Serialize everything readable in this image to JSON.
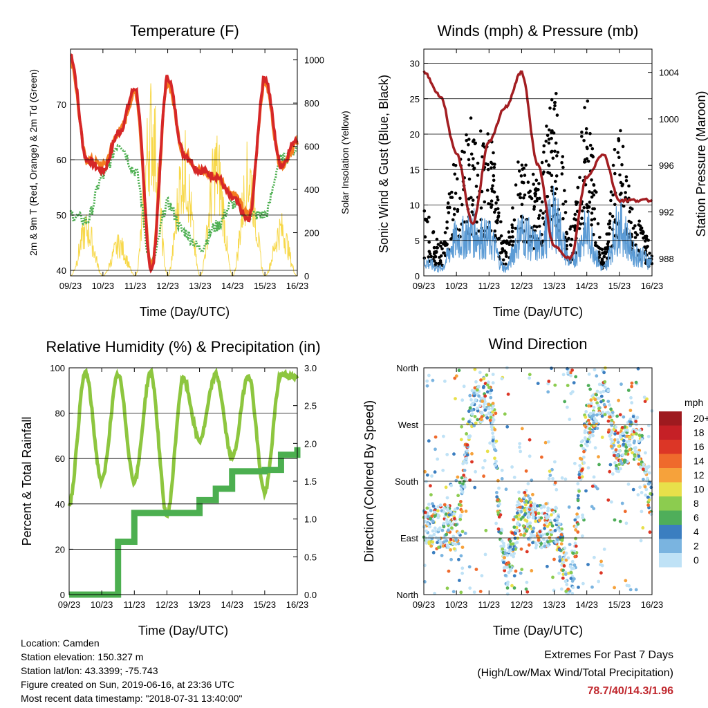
{
  "x_ticks": [
    "09/23",
    "10/23",
    "11/23",
    "12/23",
    "13/23",
    "14/23",
    "15/23",
    "16/23"
  ],
  "x_label": "Time (Day/UTC)",
  "charts": [
    {
      "id": "temperature",
      "title": "Temperature (F)",
      "ylabel_left": "2m & 9m T (Red, Orange) & 2m Td (Green)",
      "ylabel_right": "Solar Insolation (Yellow)",
      "left_ticks": [
        "40",
        "50",
        "60",
        "70"
      ],
      "right_ticks": [
        "0",
        "200",
        "400",
        "600",
        "800",
        "1000"
      ]
    },
    {
      "id": "winds",
      "title": "Winds (mph) & Pressure (mb)",
      "ylabel_left": "Sonic Wind & Gust (Blue, Black)",
      "ylabel_right": "Station Pressure (Maroon)",
      "left_ticks": [
        "0",
        "5",
        "10",
        "15",
        "20",
        "25",
        "30"
      ],
      "right_ticks": [
        "988",
        "992",
        "996",
        "1000",
        "1004"
      ]
    },
    {
      "id": "humidity",
      "title": "Relative Humidity (%) & Precipitation (in)",
      "ylabel_left": "Percent & Total Rainfall",
      "left_ticks": [
        "0",
        "20",
        "40",
        "60",
        "80",
        "100"
      ],
      "right_ticks": [
        "0.0",
        "0.5",
        "1.0",
        "1.5",
        "2.0",
        "2.5",
        "3.0"
      ]
    },
    {
      "id": "direction",
      "title": "Wind Direction",
      "ylabel_left": "Direction (Colored By Speed)",
      "left_ticks": [
        "North",
        "East",
        "South",
        "West",
        "North"
      ],
      "legend_title": "mph",
      "legend_labels": [
        "20+",
        "18",
        "16",
        "14",
        "12",
        "10",
        "8",
        "6",
        "4",
        "2",
        "0"
      ],
      "legend_colors": [
        "#9e1a1f",
        "#c52026",
        "#dc3626",
        "#ef6a2c",
        "#f6a23b",
        "#e8e04a",
        "#8ccc4f",
        "#4fae5a",
        "#3b7ec0",
        "#7ab4e0",
        "#bfe2f6"
      ]
    }
  ],
  "chart_data": [
    {
      "type": "line",
      "title": "Temperature (F)",
      "x": [
        "09/23 00",
        "09/23 12",
        "10/23 00",
        "10/23 12",
        "11/23 00",
        "11/23 12",
        "12/23 00",
        "12/23 12",
        "13/23 00",
        "13/23 12",
        "14/23 00",
        "14/23 12",
        "15/23 00",
        "15/23 12",
        "16/23 00"
      ],
      "ylim": [
        39,
        80
      ],
      "series": [
        {
          "name": "2m T",
          "color": "#d62728",
          "values": [
            79,
            60,
            58,
            65,
            73,
            40,
            75,
            61,
            58,
            57,
            53,
            49,
            75,
            59,
            64
          ]
        },
        {
          "name": "9m T",
          "color": "#f47c20",
          "values": [
            78,
            60,
            59,
            65,
            72,
            41,
            74,
            61,
            58,
            57,
            54,
            50,
            74,
            59,
            63
          ]
        },
        {
          "name": "2m Td",
          "color": "#4caf50",
          "values": [
            50,
            49,
            57,
            63,
            58,
            41,
            52,
            47,
            44,
            48,
            52,
            50,
            50,
            60,
            62
          ]
        }
      ],
      "y2lim": [
        0,
        1050
      ],
      "secondary_series": [
        {
          "name": "Solar Insolation",
          "color": "#f7d84a",
          "values": [
            0,
            300,
            0,
            200,
            0,
            950,
            0,
            700,
            0,
            700,
            0,
            650,
            0,
            300,
            0
          ]
        }
      ]
    },
    {
      "type": "scatter",
      "title": "Winds (mph) & Pressure (mb)",
      "x": [
        "09/23 00",
        "09/23 12",
        "10/23 00",
        "10/23 12",
        "11/23 00",
        "11/23 12",
        "12/23 00",
        "12/23 12",
        "13/23 00",
        "13/23 12",
        "14/23 00",
        "14/23 12",
        "15/23 00",
        "15/23 12",
        "16/23 00"
      ],
      "ylim": [
        0,
        32
      ],
      "series": [
        {
          "name": "Sonic Wind",
          "color": "#5b9bd5",
          "values": [
            2,
            1,
            5,
            6,
            5,
            1,
            6,
            4,
            8,
            2,
            6,
            1,
            7,
            3,
            2
          ]
        },
        {
          "name": "Gust",
          "color": "#000000",
          "values": [
            8,
            4,
            14,
            19,
            17,
            4,
            15,
            12,
            23,
            6,
            21,
            3,
            18,
            7,
            4
          ]
        }
      ],
      "y2lim": [
        986.5,
        1006
      ],
      "secondary_series": [
        {
          "name": "Station Pressure",
          "color": "#a31e22",
          "values": [
            1004,
            1002,
            997,
            991,
            998,
            1001,
            1004,
            996,
            989,
            988,
            995,
            997,
            993,
            993,
            993
          ]
        }
      ]
    },
    {
      "type": "line",
      "title": "Relative Humidity (%) & Precipitation (in)",
      "x": [
        "09/23 00",
        "09/23 12",
        "10/23 00",
        "10/23 12",
        "11/23 00",
        "11/23 12",
        "12/23 00",
        "12/23 12",
        "13/23 00",
        "13/23 12",
        "14/23 00",
        "14/23 12",
        "15/23 00",
        "15/23 12",
        "16/23 00"
      ],
      "ylim": [
        0,
        100
      ],
      "series": [
        {
          "name": "Relative Humidity",
          "color": "#8dc63f",
          "values": [
            40,
            98,
            50,
            97,
            50,
            98,
            35,
            95,
            68,
            97,
            60,
            97,
            45,
            97,
            96
          ]
        }
      ],
      "y2lim": [
        0,
        3.0
      ],
      "secondary_series": [
        {
          "name": "Total Precipitation",
          "color": "#4caf50",
          "values": [
            0,
            0,
            0,
            0.7,
            1.08,
            1.08,
            1.08,
            1.08,
            1.25,
            1.4,
            1.63,
            1.63,
            1.65,
            1.85,
            1.95
          ]
        }
      ]
    },
    {
      "type": "scatter",
      "title": "Wind Direction",
      "x": [
        "09/23 00",
        "09/23 12",
        "10/23 00",
        "10/23 12",
        "11/23 00",
        "11/23 12",
        "12/23 00",
        "12/23 12",
        "13/23 00",
        "13/23 12",
        "14/23 00",
        "14/23 12",
        "15/23 00",
        "15/23 12",
        "16/23 00"
      ],
      "ylim": [
        0,
        360
      ],
      "series": [
        {
          "name": "Direction",
          "values": [
            110,
            110,
            100,
            300,
            315,
            40,
            130,
            110,
            110,
            20,
            270,
            310,
            230,
            250,
            160
          ]
        }
      ]
    }
  ],
  "footer": {
    "location": "Location: Camden",
    "elevation": "Station elevation: 150.327 m",
    "latlon": "Station lat/lon: 43.3399; -75.743",
    "created": "Figure created on Sun, 2019-06-16, at 23:36 UTC",
    "timestamp": "Most recent data timestamp: \"2018-07-31 13:40:00\""
  },
  "extremes": {
    "title": "Extremes For Past 7 Days",
    "subtitle": "(High/Low/Max Wind/Total Precipitation)",
    "values": "78.7/40/14.3/1.96"
  }
}
